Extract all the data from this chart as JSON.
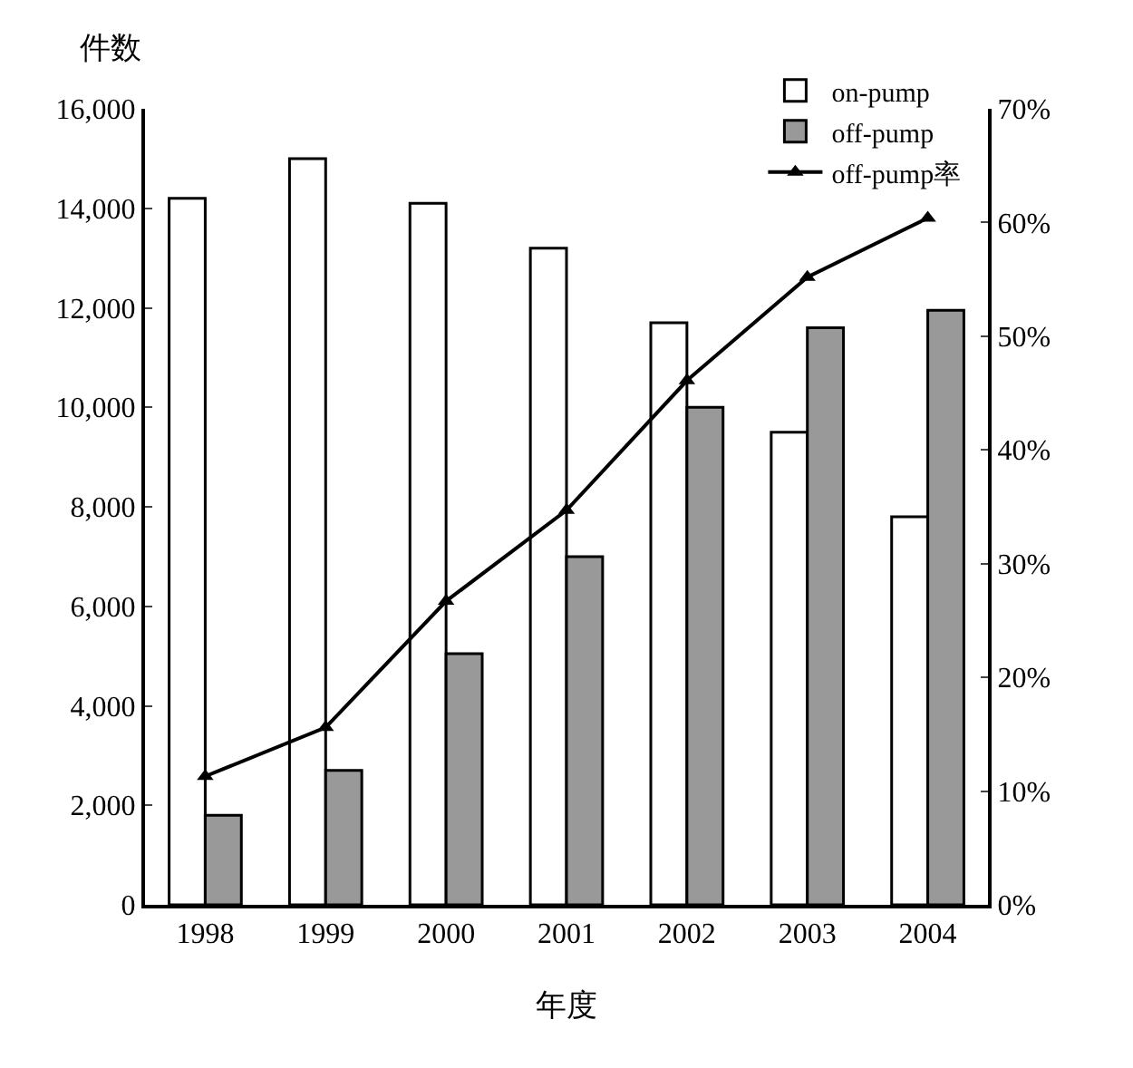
{
  "chart_data": {
    "type": "bar",
    "xlabel": "年度",
    "ylabel": "件数",
    "categories": [
      "1998",
      "1999",
      "2000",
      "2001",
      "2002",
      "2003",
      "2004"
    ],
    "series": [
      {
        "name": "on-pump",
        "color": "#ffffff",
        "values": [
          14200,
          15000,
          14100,
          13200,
          11700,
          9500,
          7800
        ]
      },
      {
        "name": "off-pump",
        "color": "#999999",
        "values": [
          1800,
          2700,
          5050,
          7000,
          10000,
          11600,
          11950
        ]
      },
      {
        "name": "off-pump率",
        "type": "line",
        "axis": "y2",
        "color": "#000000",
        "marker": "triangle",
        "values": [
          11.3,
          15.6,
          26.7,
          34.7,
          46.1,
          55.2,
          60.4
        ]
      }
    ],
    "ylim": [
      0,
      16000
    ],
    "yticks": [
      {
        "value": 0,
        "label": "0"
      },
      {
        "value": 2000,
        "label": "2,000"
      },
      {
        "value": 4000,
        "label": "4,000"
      },
      {
        "value": 6000,
        "label": "6,000"
      },
      {
        "value": 8000,
        "label": "8,000"
      },
      {
        "value": 10000,
        "label": "10,000"
      },
      {
        "value": 12000,
        "label": "12,000"
      },
      {
        "value": 14000,
        "label": "14,000"
      },
      {
        "value": 16000,
        "label": "16,000"
      }
    ],
    "y2lim": [
      0,
      70
    ],
    "y2ticks": [
      {
        "value": 0,
        "label": "0%"
      },
      {
        "value": 10,
        "label": "10%"
      },
      {
        "value": 20,
        "label": "20%"
      },
      {
        "value": 30,
        "label": "30%"
      },
      {
        "value": 40,
        "label": "40%"
      },
      {
        "value": 50,
        "label": "50%"
      },
      {
        "value": 60,
        "label": "60%"
      },
      {
        "value": 70,
        "label": "70%"
      }
    ],
    "legend": "top right"
  }
}
